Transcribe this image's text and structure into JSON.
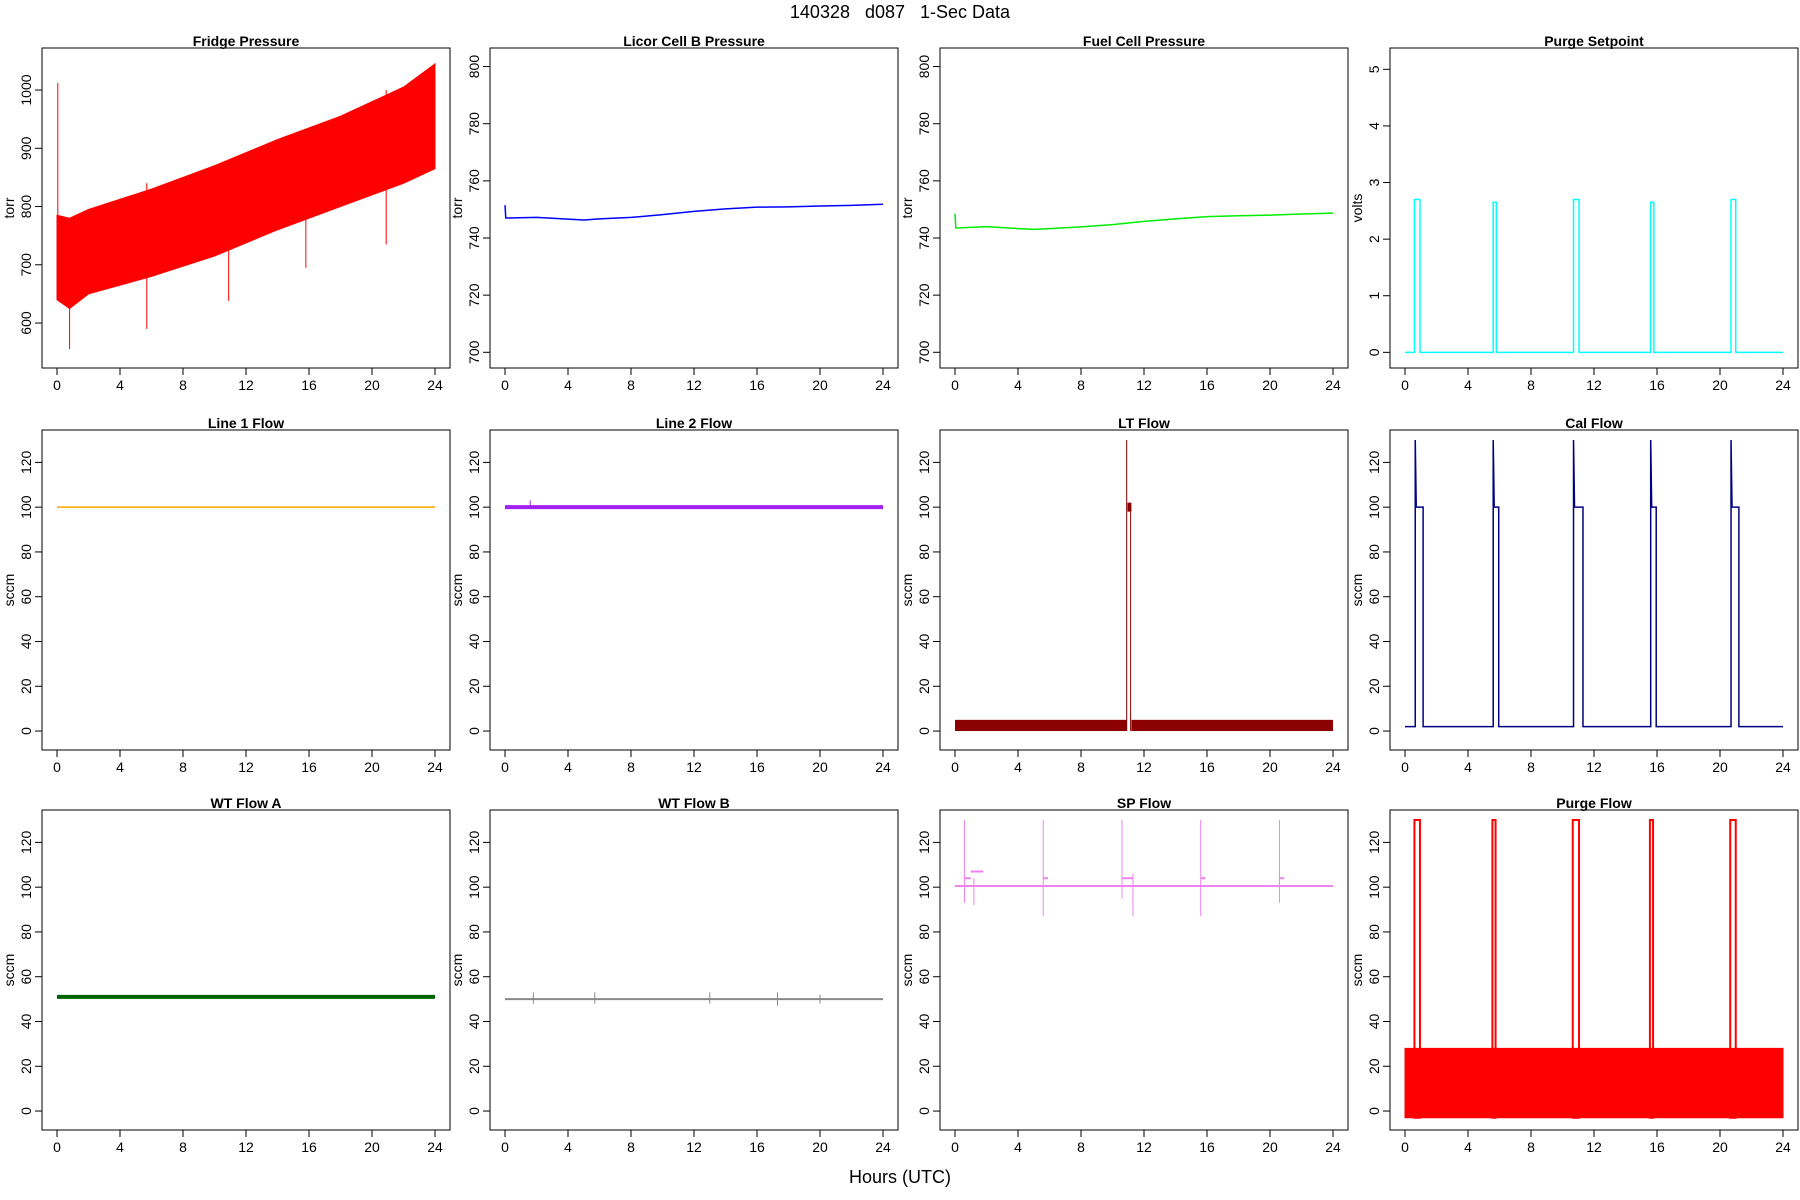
{
  "page": {
    "title": "140328   d087   1-Sec Data",
    "xlabel": "Hours (UTC)"
  },
  "chart_data": [
    {
      "id": "fridge",
      "title": "Fridge Pressure",
      "ylabel": "torr",
      "type": "line",
      "color": "#ff0000",
      "xlim": [
        0,
        24
      ],
      "ylim": [
        540,
        1055
      ],
      "xticks": [
        0,
        4,
        8,
        12,
        16,
        20,
        24
      ],
      "yticks": [
        600,
        700,
        800,
        900,
        1000
      ],
      "band": {
        "x": [
          0,
          0.8,
          2,
          6,
          10,
          14,
          18,
          22,
          24
        ],
        "low": [
          640,
          625,
          650,
          680,
          715,
          760,
          800,
          840,
          865
        ],
        "high": [
          785,
          780,
          795,
          830,
          870,
          915,
          955,
          1005,
          1045
        ]
      },
      "spikes": [
        {
          "x": 0.05,
          "y0": 640,
          "y1": 1012
        },
        {
          "x": 0.8,
          "y0": 555,
          "y1": 780
        },
        {
          "x": 5.7,
          "y0": 590,
          "y1": 840
        },
        {
          "x": 10.9,
          "y0": 638,
          "y1": 880
        },
        {
          "x": 15.8,
          "y0": 695,
          "y1": 925
        },
        {
          "x": 20.9,
          "y0": 735,
          "y1": 1000
        }
      ]
    },
    {
      "id": "licor",
      "title": "Licor Cell B Pressure",
      "ylabel": "torr",
      "type": "line",
      "color": "#0000ff",
      "xlim": [
        0,
        24
      ],
      "ylim": [
        698,
        803
      ],
      "xticks": [
        0,
        4,
        8,
        12,
        16,
        20,
        24
      ],
      "yticks": [
        700,
        720,
        740,
        760,
        780,
        800
      ],
      "x": [
        0,
        0.05,
        0.1,
        2,
        4,
        5,
        6,
        8,
        10,
        12,
        14,
        16,
        18,
        20,
        22,
        24
      ],
      "y": [
        751.5,
        747,
        747,
        747.2,
        746.6,
        746.3,
        746.7,
        747.2,
        748.2,
        749.3,
        750.2,
        750.8,
        750.9,
        751.2,
        751.4,
        751.8
      ]
    },
    {
      "id": "fuel",
      "title": "Fuel Cell Pressure",
      "ylabel": "torr",
      "type": "line",
      "color": "#00ee00",
      "xlim": [
        0,
        24
      ],
      "ylim": [
        698,
        803
      ],
      "xticks": [
        0,
        4,
        8,
        12,
        16,
        20,
        24
      ],
      "yticks": [
        700,
        720,
        740,
        760,
        780,
        800
      ],
      "x": [
        0,
        0.05,
        0.1,
        2,
        4,
        5,
        6,
        8,
        10,
        12,
        14,
        16,
        18,
        20,
        22,
        24
      ],
      "y": [
        748.5,
        743.5,
        743.5,
        744,
        743.3,
        743,
        743.3,
        743.9,
        744.7,
        745.8,
        746.7,
        747.5,
        747.8,
        748,
        748.4,
        748.7
      ]
    },
    {
      "id": "purge-setpoint",
      "title": "Purge Setpoint",
      "ylabel": "volts",
      "type": "line",
      "color": "#00ffff",
      "xlim": [
        0,
        24
      ],
      "ylim": [
        -0.1,
        5.2
      ],
      "xticks": [
        0,
        4,
        8,
        12,
        16,
        20,
        24
      ],
      "yticks": [
        0,
        1,
        2,
        3,
        4,
        5
      ],
      "baseline": 0,
      "pulses": [
        {
          "x0": 0.6,
          "x1": 0.95,
          "y": 2.7
        },
        {
          "x0": 5.6,
          "x1": 5.8,
          "y": 2.65
        },
        {
          "x0": 10.7,
          "x1": 11.05,
          "y": 2.7
        },
        {
          "x0": 15.6,
          "x1": 15.8,
          "y": 2.65
        },
        {
          "x0": 20.7,
          "x1": 21.0,
          "y": 2.7
        }
      ]
    },
    {
      "id": "line1",
      "title": "Line 1 Flow",
      "ylabel": "sccm",
      "type": "line",
      "color": "#ffa500",
      "xlim": [
        0,
        24
      ],
      "ylim": [
        -4,
        130
      ],
      "xticks": [
        0,
        4,
        8,
        12,
        16,
        20,
        24
      ],
      "yticks": [
        0,
        20,
        40,
        60,
        80,
        100,
        120
      ],
      "x": [
        0,
        24
      ],
      "y": [
        100,
        100
      ]
    },
    {
      "id": "line2",
      "title": "Line 2 Flow",
      "ylabel": "sccm",
      "type": "line",
      "color": "#a020f0",
      "xlim": [
        0,
        24
      ],
      "ylim": [
        -4,
        130
      ],
      "xticks": [
        0,
        4,
        8,
        12,
        16,
        20,
        24
      ],
      "yticks": [
        0,
        20,
        40,
        60,
        80,
        100,
        120
      ],
      "x": [
        0,
        24
      ],
      "y": [
        100,
        100
      ],
      "spikes": [
        {
          "x": 1.6,
          "y0": 100,
          "y1": 103
        }
      ]
    },
    {
      "id": "lt",
      "title": "LT Flow",
      "ylabel": "sccm",
      "type": "line",
      "color": "#8b0000",
      "xlim": [
        0,
        24
      ],
      "ylim": [
        -4,
        130
      ],
      "xticks": [
        0,
        4,
        8,
        12,
        16,
        20,
        24
      ],
      "yticks": [
        0,
        20,
        40,
        60,
        80,
        100,
        120
      ],
      "bands": [
        {
          "x0": 0,
          "x1": 10.9,
          "y0": 0,
          "y1": 5
        },
        {
          "x0": 11.2,
          "x1": 24,
          "y0": 0,
          "y1": 5
        },
        {
          "x0": 10.95,
          "x1": 11.2,
          "y0": 98,
          "y1": 102
        }
      ],
      "spikes": [
        {
          "x": 10.9,
          "y0": 0,
          "y1": 130
        },
        {
          "x": 11.15,
          "y0": 0,
          "y1": 100
        }
      ]
    },
    {
      "id": "cal",
      "title": "Cal Flow",
      "ylabel": "sccm",
      "type": "line",
      "color": "#000080",
      "xlim": [
        0,
        24
      ],
      "ylim": [
        -4,
        130
      ],
      "xticks": [
        0,
        4,
        8,
        12,
        16,
        20,
        24
      ],
      "yticks": [
        0,
        20,
        40,
        60,
        80,
        100,
        120
      ],
      "baseline": 2,
      "pulses": [
        {
          "x0": 0.65,
          "x1": 1.15,
          "y": 100,
          "peak": 130
        },
        {
          "x0": 5.6,
          "x1": 5.95,
          "y": 100,
          "peak": 130
        },
        {
          "x0": 10.7,
          "x1": 11.3,
          "y": 100,
          "peak": 130
        },
        {
          "x0": 15.6,
          "x1": 15.95,
          "y": 100,
          "peak": 130
        },
        {
          "x0": 20.7,
          "x1": 21.2,
          "y": 100,
          "peak": 130
        }
      ]
    },
    {
      "id": "wta",
      "title": "WT Flow A",
      "ylabel": "sccm",
      "type": "line",
      "color": "#006400",
      "xlim": [
        0,
        24
      ],
      "ylim": [
        -4,
        130
      ],
      "xticks": [
        0,
        4,
        8,
        12,
        16,
        20,
        24
      ],
      "yticks": [
        0,
        20,
        40,
        60,
        80,
        100,
        120
      ],
      "x": [
        0,
        24
      ],
      "y": [
        51,
        51
      ]
    },
    {
      "id": "wtb",
      "title": "WT Flow B",
      "ylabel": "sccm",
      "type": "line",
      "color": "#888888",
      "xlim": [
        0,
        24
      ],
      "ylim": [
        -4,
        130
      ],
      "xticks": [
        0,
        4,
        8,
        12,
        16,
        20,
        24
      ],
      "yticks": [
        0,
        20,
        40,
        60,
        80,
        100,
        120
      ],
      "x": [
        0,
        24
      ],
      "y": [
        50,
        50
      ],
      "spikes": [
        {
          "x": 1.8,
          "y0": 48,
          "y1": 53
        },
        {
          "x": 5.7,
          "y0": 48,
          "y1": 53
        },
        {
          "x": 13,
          "y0": 48,
          "y1": 53
        },
        {
          "x": 17.3,
          "y0": 47,
          "y1": 53
        },
        {
          "x": 20,
          "y0": 48,
          "y1": 52
        }
      ]
    },
    {
      "id": "sp",
      "title": "SP Flow",
      "ylabel": "sccm",
      "type": "line",
      "color": "#ee82ee",
      "xlim": [
        0,
        24
      ],
      "ylim": [
        -4,
        130
      ],
      "xticks": [
        0,
        4,
        8,
        12,
        16,
        20,
        24
      ],
      "yticks": [
        0,
        20,
        40,
        60,
        80,
        100,
        120
      ],
      "baseline": 100.5,
      "steps": [
        {
          "x0": 0.6,
          "x1": 1.0,
          "y": 104
        },
        {
          "x0": 1.0,
          "x1": 1.8,
          "y": 107
        },
        {
          "x0": 5.6,
          "x1": 5.9,
          "y": 104
        },
        {
          "x0": 10.6,
          "x1": 11.3,
          "y": 104
        },
        {
          "x0": 15.6,
          "x1": 15.9,
          "y": 104
        },
        {
          "x0": 20.6,
          "x1": 20.9,
          "y": 104
        }
      ],
      "spikes": [
        {
          "x": 0.6,
          "y0": 93,
          "y1": 130
        },
        {
          "x": 1.2,
          "y0": 92,
          "y1": 104
        },
        {
          "x": 5.6,
          "y0": 87,
          "y1": 130
        },
        {
          "x": 10.6,
          "y0": 95,
          "y1": 130
        },
        {
          "x": 11.3,
          "y0": 87,
          "y1": 106
        },
        {
          "x": 15.6,
          "y0": 87,
          "y1": 130
        },
        {
          "x": 20.6,
          "y0": 93,
          "y1": 130
        }
      ]
    },
    {
      "id": "purge-flow",
      "title": "Purge Flow",
      "ylabel": "sccm",
      "type": "line",
      "color": "#ff0000",
      "xlim": [
        0,
        24
      ],
      "ylim": [
        -4,
        130
      ],
      "xticks": [
        0,
        4,
        8,
        12,
        16,
        20,
        24
      ],
      "yticks": [
        0,
        20,
        40,
        60,
        80,
        100,
        120
      ],
      "band": {
        "x": [
          0,
          24
        ],
        "low": [
          -3,
          -3
        ],
        "high": [
          28,
          28
        ]
      },
      "pulses": [
        {
          "x0": 0.6,
          "x1": 0.95,
          "y": 130
        },
        {
          "x0": 5.55,
          "x1": 5.75,
          "y": 130
        },
        {
          "x0": 10.65,
          "x1": 11.05,
          "y": 130
        },
        {
          "x0": 15.55,
          "x1": 15.75,
          "y": 130
        },
        {
          "x0": 20.65,
          "x1": 21.0,
          "y": 130
        }
      ]
    }
  ]
}
